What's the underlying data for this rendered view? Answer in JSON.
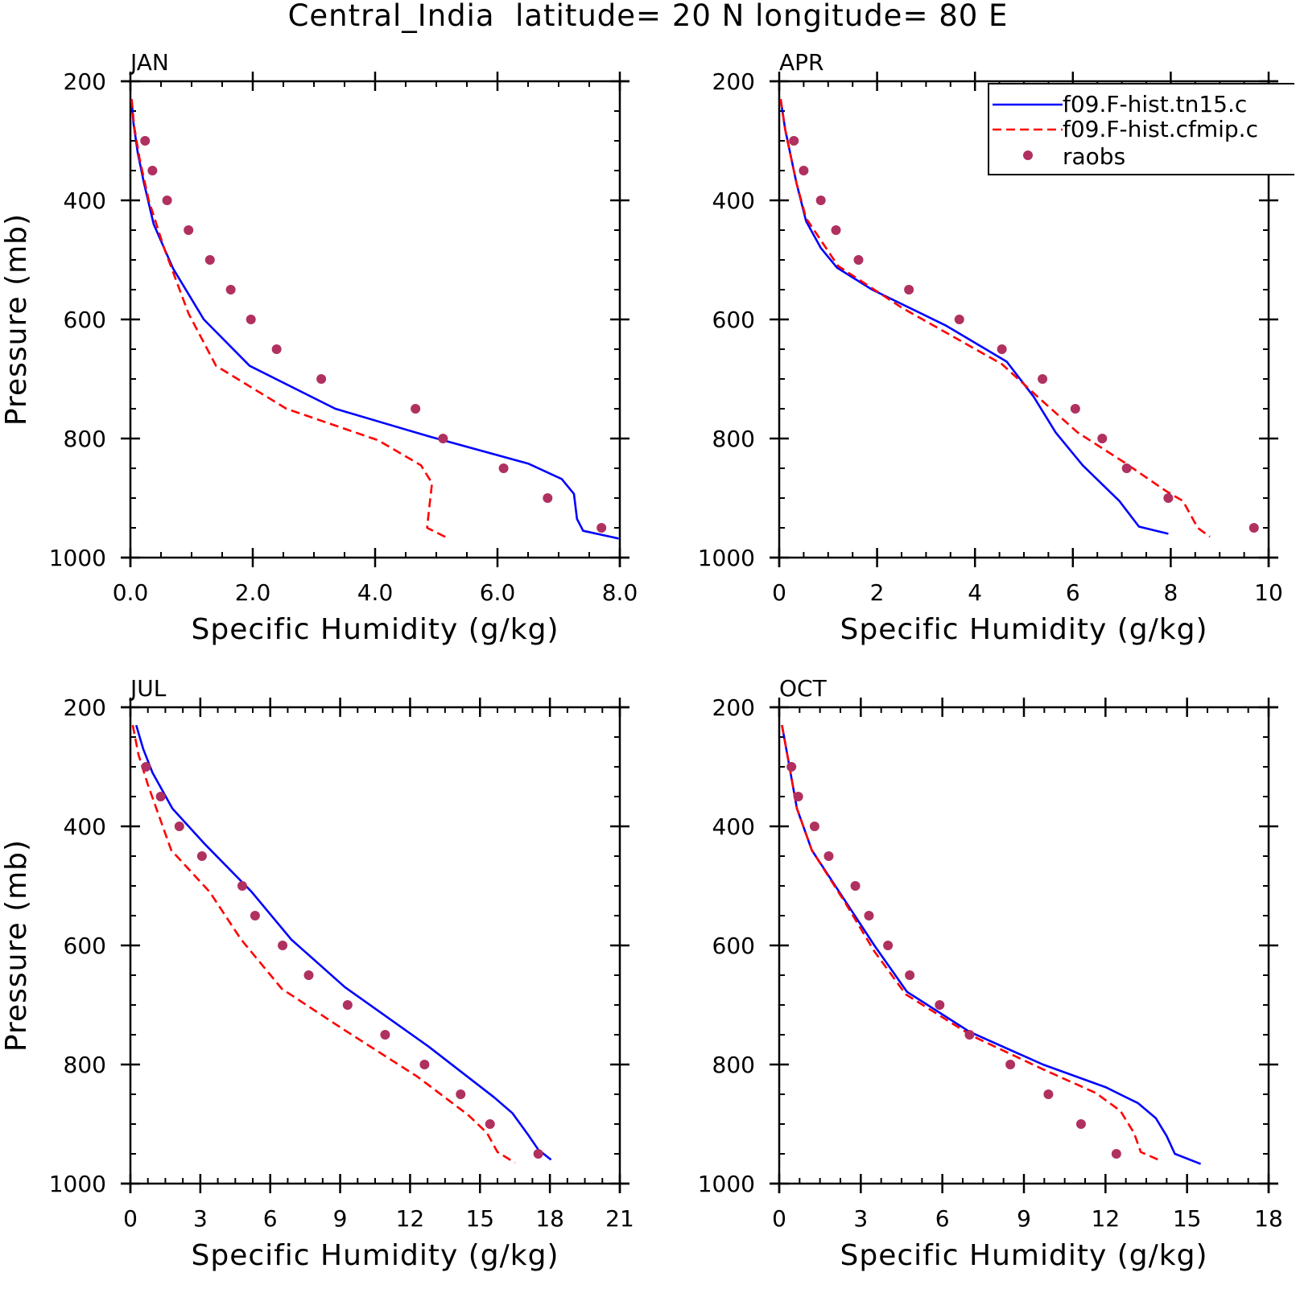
{
  "figure": {
    "title": "Central_India  latitude= 20 N longitude= 80 E"
  },
  "legend": {
    "entries": [
      {
        "label": "f09.F-hist.tn15.c",
        "style": "solid",
        "color": "#0000ff"
      },
      {
        "label": "f09.F-hist.cfmip.c",
        "style": "dashed",
        "color": "#ff0000"
      },
      {
        "label": "raobs",
        "style": "marker",
        "color": "#b03060"
      }
    ]
  },
  "colors": {
    "model_solid": "#0000ff",
    "model_dashed": "#ff0000",
    "obs_marker": "#b03060"
  },
  "chart_data": [
    {
      "type": "line",
      "panel_label": "JAN",
      "xlabel": "Specific Humidity (g/kg)",
      "ylabel": "Pressure (mb)",
      "xlim": [
        0,
        8
      ],
      "ylim": [
        200,
        1000
      ],
      "y_inverted": true,
      "xticks": [
        0,
        2,
        4,
        6,
        8
      ],
      "xtick_labels": [
        "0.0",
        "2.0",
        "4.0",
        "6.0",
        "8.0"
      ],
      "yticks": [
        200,
        400,
        600,
        800,
        1000
      ],
      "ytick_labels": [
        "200",
        "400",
        "600",
        "800",
        "1000"
      ],
      "series": [
        {
          "name": "f09.F-hist.tn15.c",
          "style": "solid",
          "points": [
            [
              0.02,
              230
            ],
            [
              0.05,
              270
            ],
            [
              0.12,
              320
            ],
            [
              0.22,
              370
            ],
            [
              0.38,
              440
            ],
            [
              0.7,
              515
            ],
            [
              1.2,
              600
            ],
            [
              1.95,
              678
            ],
            [
              3.35,
              750
            ],
            [
              4.9,
              797
            ],
            [
              6.5,
              842
            ],
            [
              7.05,
              868
            ],
            [
              7.25,
              893
            ],
            [
              7.3,
              935
            ],
            [
              7.4,
              955
            ],
            [
              7.98,
              968
            ]
          ]
        },
        {
          "name": "f09.F-hist.cfmip.c",
          "style": "dashed",
          "points": [
            [
              0.02,
              230
            ],
            [
              0.06,
              275
            ],
            [
              0.15,
              330
            ],
            [
              0.3,
              400
            ],
            [
              0.55,
              480
            ],
            [
              0.95,
              590
            ],
            [
              1.4,
              678
            ],
            [
              2.55,
              750
            ],
            [
              4.05,
              803
            ],
            [
              4.75,
              845
            ],
            [
              4.93,
              875
            ],
            [
              4.88,
              920
            ],
            [
              4.85,
              950
            ],
            [
              5.2,
              968
            ]
          ]
        },
        {
          "name": "raobs",
          "style": "marker",
          "points": [
            [
              0.24,
              300
            ],
            [
              0.36,
              350
            ],
            [
              0.6,
              400
            ],
            [
              0.95,
              450
            ],
            [
              1.3,
              500
            ],
            [
              1.64,
              550
            ],
            [
              1.97,
              600
            ],
            [
              2.39,
              650
            ],
            [
              3.12,
              700
            ],
            [
              4.66,
              750
            ],
            [
              5.11,
              800
            ],
            [
              6.1,
              850
            ],
            [
              6.82,
              900
            ],
            [
              7.7,
              950
            ]
          ]
        }
      ]
    },
    {
      "type": "line",
      "panel_label": "APR",
      "xlabel": "Specific Humidity (g/kg)",
      "ylabel": "",
      "xlim": [
        0,
        10
      ],
      "ylim": [
        200,
        1000
      ],
      "y_inverted": true,
      "xticks": [
        0,
        2,
        4,
        6,
        8,
        10
      ],
      "xtick_labels": [
        "0",
        "2",
        "4",
        "6",
        "8",
        "10"
      ],
      "yticks": [
        200,
        400,
        600,
        800,
        1000
      ],
      "ytick_labels": [
        "200",
        "400",
        "600",
        "800",
        "1000"
      ],
      "series": [
        {
          "name": "f09.F-hist.tn15.c",
          "style": "solid",
          "points": [
            [
              0.03,
              230
            ],
            [
              0.12,
              280
            ],
            [
              0.35,
              370
            ],
            [
              0.55,
              435
            ],
            [
              0.85,
              480
            ],
            [
              1.18,
              513
            ],
            [
              1.9,
              550
            ],
            [
              3.4,
              610
            ],
            [
              4.65,
              671
            ],
            [
              5.2,
              730
            ],
            [
              5.65,
              790
            ],
            [
              6.2,
              845
            ],
            [
              6.95,
              905
            ],
            [
              7.35,
              948
            ],
            [
              7.95,
              960
            ]
          ]
        },
        {
          "name": "f09.F-hist.cfmip.c",
          "style": "dashed",
          "points": [
            [
              0.03,
              230
            ],
            [
              0.13,
              285
            ],
            [
              0.35,
              370
            ],
            [
              0.55,
              430
            ],
            [
              1.2,
              510
            ],
            [
              2.5,
              580
            ],
            [
              4.55,
              675
            ],
            [
              5.35,
              735
            ],
            [
              6.1,
              790
            ],
            [
              7.05,
              840
            ],
            [
              7.9,
              888
            ],
            [
              8.25,
              905
            ],
            [
              8.45,
              935
            ],
            [
              8.55,
              950
            ],
            [
              8.8,
              965
            ]
          ]
        },
        {
          "name": "raobs",
          "style": "marker",
          "points": [
            [
              0.3,
              300
            ],
            [
              0.5,
              350
            ],
            [
              0.85,
              400
            ],
            [
              1.16,
              450
            ],
            [
              1.62,
              500
            ],
            [
              2.65,
              550
            ],
            [
              3.68,
              600
            ],
            [
              4.55,
              650
            ],
            [
              5.38,
              700
            ],
            [
              6.05,
              750
            ],
            [
              6.6,
              800
            ],
            [
              7.1,
              850
            ],
            [
              7.95,
              900
            ],
            [
              9.7,
              950
            ]
          ]
        }
      ]
    },
    {
      "type": "line",
      "panel_label": "JUL",
      "xlabel": "Specific Humidity (g/kg)",
      "ylabel": "Pressure (mb)",
      "xlim": [
        0,
        21
      ],
      "ylim": [
        200,
        1000
      ],
      "y_inverted": true,
      "xticks": [
        0,
        3,
        6,
        9,
        12,
        15,
        18,
        21
      ],
      "xtick_labels": [
        "0",
        "3",
        "6",
        "9",
        "12",
        "15",
        "18",
        "21"
      ],
      "yticks": [
        200,
        400,
        600,
        800,
        1000
      ],
      "ytick_labels": [
        "200",
        "400",
        "600",
        "800",
        "1000"
      ],
      "series": [
        {
          "name": "f09.F-hist.tn15.c",
          "style": "solid",
          "points": [
            [
              0.25,
              230
            ],
            [
              0.55,
              270
            ],
            [
              0.95,
              310
            ],
            [
              1.8,
              370
            ],
            [
              3.2,
              430
            ],
            [
              5.2,
              510
            ],
            [
              6.9,
              590
            ],
            [
              9.2,
              670
            ],
            [
              12.8,
              770
            ],
            [
              15.6,
              855
            ],
            [
              16.4,
              882
            ],
            [
              17.1,
              920
            ],
            [
              17.5,
              943
            ],
            [
              18.05,
              960
            ]
          ]
        },
        {
          "name": "f09.F-hist.cfmip.c",
          "style": "dashed",
          "points": [
            [
              0.1,
              230
            ],
            [
              0.35,
              280
            ],
            [
              0.75,
              330
            ],
            [
              1.75,
              440
            ],
            [
              3.4,
              510
            ],
            [
              4.75,
              590
            ],
            [
              6.5,
              673
            ],
            [
              9.1,
              740
            ],
            [
              12.3,
              820
            ],
            [
              14.5,
              885
            ],
            [
              15.3,
              915
            ],
            [
              15.75,
              947
            ],
            [
              16.5,
              965
            ]
          ]
        },
        {
          "name": "raobs",
          "style": "marker",
          "points": [
            [
              0.67,
              300
            ],
            [
              1.3,
              350
            ],
            [
              2.1,
              400
            ],
            [
              3.07,
              450
            ],
            [
              4.8,
              500
            ],
            [
              5.35,
              550
            ],
            [
              6.53,
              600
            ],
            [
              7.65,
              650
            ],
            [
              9.32,
              700
            ],
            [
              10.93,
              750
            ],
            [
              12.62,
              800
            ],
            [
              14.17,
              850
            ],
            [
              15.43,
              900
            ],
            [
              17.5,
              950
            ]
          ]
        }
      ]
    },
    {
      "type": "line",
      "panel_label": "OCT",
      "xlabel": "Specific Humidity (g/kg)",
      "ylabel": "",
      "xlim": [
        0,
        18
      ],
      "ylim": [
        200,
        1000
      ],
      "y_inverted": true,
      "xticks": [
        0,
        3,
        6,
        9,
        12,
        15,
        18
      ],
      "xtick_labels": [
        "0",
        "3",
        "6",
        "9",
        "12",
        "15",
        "18"
      ],
      "yticks": [
        200,
        400,
        600,
        800,
        1000
      ],
      "ytick_labels": [
        "200",
        "400",
        "600",
        "800",
        "1000"
      ],
      "series": [
        {
          "name": "f09.F-hist.tn15.c",
          "style": "solid",
          "points": [
            [
              0.1,
              230
            ],
            [
              0.3,
              280
            ],
            [
              0.65,
              370
            ],
            [
              1.2,
              440
            ],
            [
              2.35,
              520
            ],
            [
              3.5,
              600
            ],
            [
              4.7,
              678
            ],
            [
              7.0,
              745
            ],
            [
              9.7,
              800
            ],
            [
              12.0,
              838
            ],
            [
              13.2,
              865
            ],
            [
              13.85,
              890
            ],
            [
              14.25,
              920
            ],
            [
              14.55,
              950
            ],
            [
              15.5,
              967
            ]
          ]
        },
        {
          "name": "f09.F-hist.cfmip.c",
          "style": "dashed",
          "points": [
            [
              0.1,
              230
            ],
            [
              0.3,
              280
            ],
            [
              0.65,
              370
            ],
            [
              1.2,
              440
            ],
            [
              2.45,
              530
            ],
            [
              3.5,
              610
            ],
            [
              4.65,
              682
            ],
            [
              7.1,
              752
            ],
            [
              9.7,
              808
            ],
            [
              11.65,
              848
            ],
            [
              12.55,
              878
            ],
            [
              13.05,
              915
            ],
            [
              13.3,
              947
            ],
            [
              14.05,
              962
            ]
          ]
        },
        {
          "name": "raobs",
          "style": "marker",
          "points": [
            [
              0.45,
              300
            ],
            [
              0.7,
              350
            ],
            [
              1.3,
              400
            ],
            [
              1.82,
              450
            ],
            [
              2.8,
              500
            ],
            [
              3.3,
              550
            ],
            [
              4.0,
              600
            ],
            [
              4.8,
              650
            ],
            [
              5.9,
              700
            ],
            [
              7.0,
              750
            ],
            [
              8.5,
              800
            ],
            [
              9.9,
              850
            ],
            [
              11.1,
              900
            ],
            [
              12.4,
              950
            ]
          ]
        }
      ]
    }
  ]
}
